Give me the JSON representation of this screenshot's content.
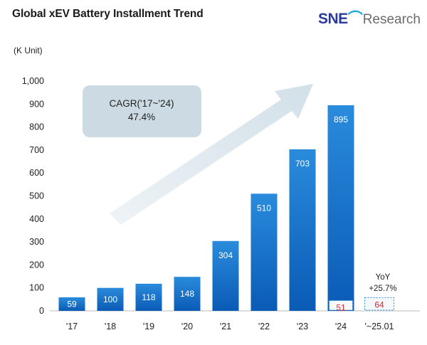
{
  "header": {
    "title": "Global xEV Battery Installment Trend",
    "unit": "(K Unit)",
    "logo": {
      "sne": "SNE",
      "research": "Research"
    }
  },
  "colors": {
    "bar_top": "#2a8bdc",
    "bar_bottom": "#0a5bb5",
    "label_red": "#e0262c",
    "callout_bg": "#ccdbe3",
    "arrow_fill": "#dde8ee"
  },
  "chart_data": {
    "type": "bar",
    "title": "Global xEV Battery Installment Trend",
    "ylabel": "(K Unit)",
    "xlabel": "",
    "ylim": [
      0,
      1000
    ],
    "yticks": [
      0,
      100,
      200,
      300,
      400,
      500,
      600,
      700,
      800,
      900,
      1000
    ],
    "ytick_labels": [
      "0",
      "100",
      "200",
      "300",
      "400",
      "500",
      "600",
      "700",
      "800",
      "900",
      "1,000"
    ],
    "categories": [
      "'17",
      "'18",
      "'19",
      "'20",
      "'21",
      "'22",
      "'23",
      "'24",
      "'~25.01"
    ],
    "values": [
      59,
      100,
      118,
      148,
      304,
      510,
      703,
      895,
      null
    ],
    "bar_labels": [
      "59",
      "100",
      "118",
      "148",
      "304",
      "510",
      "703",
      "895",
      ""
    ],
    "jan_values": {
      "'24": 51,
      "'~25.01": 64
    },
    "annotations": {
      "cagr_label": "CAGR('17~'24)",
      "cagr_value": "47.4%",
      "yoy_label": "YoY",
      "yoy_value": "+25.7%"
    }
  }
}
